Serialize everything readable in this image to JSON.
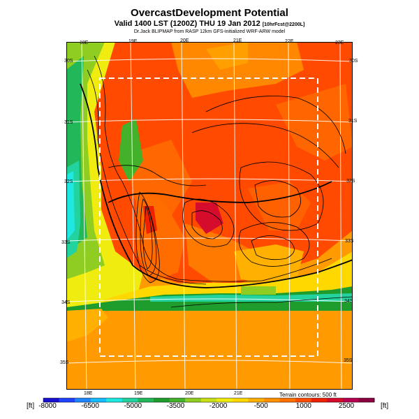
{
  "header": {
    "title": "OvercastDevelopment Potential",
    "valid_line": "Valid 1400 LST (1200Z) THU 19 Jan 2012",
    "valid_suffix": "[10hrFcst@2200L]",
    "source": "Dr.Jack BLIPMAP from RASP 12km GFS-initialized WRF-ARW model"
  },
  "top_lon_labels": [
    "18E",
    "19E",
    "20E",
    "21E",
    "22E",
    "23E"
  ],
  "bottom_lon_labels": [
    "18E",
    "19E",
    "20E",
    "21E"
  ],
  "left_lat_labels": [
    "30S",
    "31S",
    "32S",
    "33S",
    "34S",
    "35S"
  ],
  "right_lat_labels": [
    "30S",
    "31S",
    "32S",
    "33S",
    "34S",
    "35S"
  ],
  "terrain_note": "Terrain contours: 500 ft",
  "colorbar": {
    "unit_left": "[ft]",
    "unit_right": "[ft]",
    "tick_labels": [
      "-8000",
      "-6500",
      "-5000",
      "-3500",
      "-2000",
      "-500",
      "1000",
      "2500"
    ],
    "colors": [
      "#1a10d0",
      "#1f43ff",
      "#1f84ff",
      "#16bcff",
      "#1ee8e0",
      "#22d3a0",
      "#22b85a",
      "#1f9d2c",
      "#43b12a",
      "#8fcd23",
      "#c9e019",
      "#f0ec10",
      "#ffd800",
      "#ffb000",
      "#ff9000",
      "#ff7000",
      "#ff4c00",
      "#ee2200",
      "#d60c2c",
      "#b80050",
      "#8a0040"
    ]
  }
}
